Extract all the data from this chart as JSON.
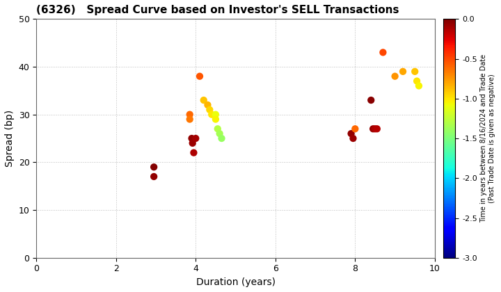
{
  "title": "(6326)   Spread Curve based on Investor's SELL Transactions",
  "xlabel": "Duration (years)",
  "ylabel": "Spread (bp)",
  "xlim": [
    0,
    10
  ],
  "ylim": [
    0,
    50
  ],
  "xticks": [
    0,
    2,
    4,
    6,
    8,
    10
  ],
  "yticks": [
    0,
    10,
    20,
    30,
    40,
    50
  ],
  "colorbar_label_line1": "Time in years between 8/16/2024 and Trade Date",
  "colorbar_label_line2": "(Past Trade Date is given as negative)",
  "cbar_vmin": -3.0,
  "cbar_vmax": 0.0,
  "cbar_ticks": [
    0.0,
    -0.5,
    -1.0,
    -1.5,
    -2.0,
    -2.5,
    -3.0
  ],
  "points": [
    {
      "duration": 2.95,
      "spread": 19,
      "time_val": -0.02
    },
    {
      "duration": 2.95,
      "spread": 17,
      "time_val": -0.05
    },
    {
      "duration": 3.85,
      "spread": 30,
      "time_val": -0.6
    },
    {
      "duration": 3.85,
      "spread": 29,
      "time_val": -0.65
    },
    {
      "duration": 3.9,
      "spread": 25,
      "time_val": -0.05
    },
    {
      "duration": 3.92,
      "spread": 24,
      "time_val": -0.08
    },
    {
      "duration": 3.95,
      "spread": 22,
      "time_val": -0.12
    },
    {
      "duration": 4.0,
      "spread": 25,
      "time_val": -0.1
    },
    {
      "duration": 4.1,
      "spread": 38,
      "time_val": -0.55
    },
    {
      "duration": 4.2,
      "spread": 33,
      "time_val": -0.9
    },
    {
      "duration": 4.3,
      "spread": 32,
      "time_val": -0.85
    },
    {
      "duration": 4.35,
      "spread": 31,
      "time_val": -0.95
    },
    {
      "duration": 4.4,
      "spread": 30,
      "time_val": -1.0
    },
    {
      "duration": 4.5,
      "spread": 30,
      "time_val": -1.1
    },
    {
      "duration": 4.5,
      "spread": 29,
      "time_val": -1.05
    },
    {
      "duration": 4.55,
      "spread": 27,
      "time_val": -1.3
    },
    {
      "duration": 4.6,
      "spread": 26,
      "time_val": -1.35
    },
    {
      "duration": 4.65,
      "spread": 25,
      "time_val": -1.4
    },
    {
      "duration": 7.9,
      "spread": 26,
      "time_val": -0.05
    },
    {
      "duration": 7.95,
      "spread": 25,
      "time_val": -0.08
    },
    {
      "duration": 8.0,
      "spread": 27,
      "time_val": -0.6
    },
    {
      "duration": 8.4,
      "spread": 33,
      "time_val": -0.03
    },
    {
      "duration": 8.45,
      "spread": 27,
      "time_val": -0.07
    },
    {
      "duration": 8.5,
      "spread": 27,
      "time_val": -0.12
    },
    {
      "duration": 8.55,
      "spread": 27,
      "time_val": -0.15
    },
    {
      "duration": 8.7,
      "spread": 43,
      "time_val": -0.5
    },
    {
      "duration": 9.0,
      "spread": 38,
      "time_val": -0.75
    },
    {
      "duration": 9.2,
      "spread": 39,
      "time_val": -0.8
    },
    {
      "duration": 9.5,
      "spread": 39,
      "time_val": -0.9
    },
    {
      "duration": 9.55,
      "spread": 37,
      "time_val": -1.0
    },
    {
      "duration": 9.6,
      "spread": 36,
      "time_val": -1.05
    }
  ],
  "background_color": "#ffffff",
  "grid_color": "#aaaaaa",
  "marker_size": 55,
  "title_fontsize": 11,
  "axis_label_fontsize": 10
}
